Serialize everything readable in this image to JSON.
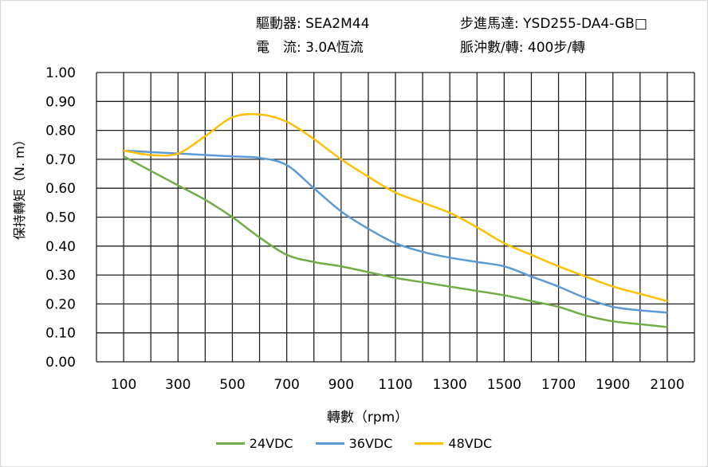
{
  "header": {
    "driver_label": "驅動器:",
    "driver_value": "SEA2M44",
    "motor_label": "步進馬達:",
    "motor_value": "YSD255-DA4-GB□",
    "current_label": "電　流:",
    "current_value": "3.0A恆流",
    "pulse_label": "脈沖數/轉:",
    "pulse_value": "400步/轉"
  },
  "chart_data": {
    "type": "line",
    "xlabel": "轉數（rpm）",
    "ylabel": "保持轉矩（N. m）",
    "xlim": [
      0,
      2200
    ],
    "ylim": [
      0,
      1.0
    ],
    "grid": true,
    "legend": "bottom",
    "x_ticks": [
      100,
      300,
      500,
      700,
      900,
      1100,
      1300,
      1500,
      1700,
      1900,
      2100
    ],
    "y_ticks": [
      "0.00",
      "0.10",
      "0.20",
      "0.30",
      "0.40",
      "0.50",
      "0.60",
      "0.70",
      "0.80",
      "0.90",
      "1.00"
    ],
    "x": [
      100,
      200,
      300,
      400,
      500,
      600,
      700,
      800,
      900,
      1000,
      1100,
      1200,
      1300,
      1400,
      1500,
      1600,
      1700,
      1800,
      1900,
      2000,
      2100
    ],
    "series": [
      {
        "name": "24VDC",
        "color": "#70ad47",
        "values": [
          0.71,
          0.66,
          0.61,
          0.56,
          0.5,
          0.43,
          0.37,
          0.345,
          0.33,
          0.31,
          0.29,
          0.275,
          0.26,
          0.245,
          0.23,
          0.21,
          0.19,
          0.16,
          0.14,
          0.13,
          0.12
        ]
      },
      {
        "name": "36VDC",
        "color": "#5b9bd5",
        "values": [
          0.73,
          0.725,
          0.72,
          0.715,
          0.71,
          0.705,
          0.68,
          0.6,
          0.52,
          0.46,
          0.41,
          0.38,
          0.36,
          0.345,
          0.33,
          0.295,
          0.26,
          0.22,
          0.19,
          0.178,
          0.17
        ]
      },
      {
        "name": "48VDC",
        "color": "#ffc000",
        "values": [
          0.73,
          0.715,
          0.72,
          0.78,
          0.845,
          0.855,
          0.83,
          0.77,
          0.7,
          0.64,
          0.585,
          0.55,
          0.515,
          0.465,
          0.41,
          0.37,
          0.33,
          0.295,
          0.26,
          0.235,
          0.21
        ]
      }
    ]
  }
}
